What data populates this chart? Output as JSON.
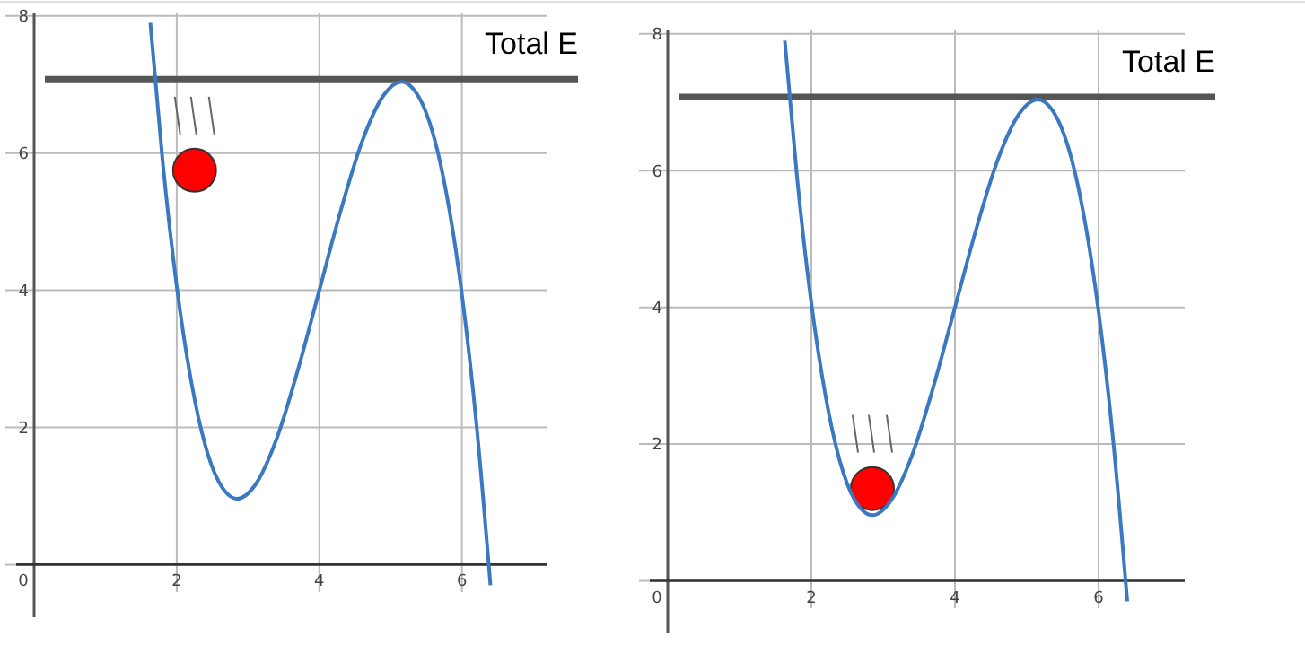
{
  "chart_data": [
    {
      "type": "line",
      "x": [
        1.63,
        1.8,
        2.0,
        2.2,
        2.4,
        2.6,
        2.85,
        3.1,
        3.4,
        3.7,
        4.0,
        4.3,
        4.6,
        4.9,
        5.15,
        5.4,
        5.7,
        6.0,
        6.2,
        6.4
      ],
      "series": [
        {
          "color": "#3a78c2",
          "values": [
            7.9,
            5.91,
            4.06,
            2.69,
            1.74,
            1.19,
            0.96,
            1.16,
            1.83,
            2.84,
            4,
            5.16,
            6.17,
            6.84,
            7.04,
            6.81,
            5.84,
            3.94,
            2.09,
            -0.3
          ]
        }
      ],
      "xlim": [
        0,
        7.2
      ],
      "ylim": [
        -0.4,
        8.05
      ],
      "xticks": [
        0,
        2,
        4,
        6
      ],
      "yticks": [
        {
          "value": 0,
          "label": null
        },
        2,
        4,
        6,
        8
      ],
      "grid": true,
      "marker": "none",
      "line_style": "solid",
      "ref_lines": [
        {
          "axis": "y",
          "value": 7.08,
          "label": "Total E",
          "color": "#555555"
        }
      ]
    },
    {
      "type": "line",
      "x": [
        1.63,
        1.8,
        2.0,
        2.2,
        2.4,
        2.6,
        2.85,
        3.1,
        3.4,
        3.7,
        4.0,
        4.3,
        4.6,
        4.9,
        5.15,
        5.4,
        5.7,
        6.0,
        6.2,
        6.4
      ],
      "series": [
        {
          "color": "#3a78c2",
          "values": [
            7.9,
            5.91,
            4.06,
            2.69,
            1.74,
            1.19,
            0.96,
            1.16,
            1.83,
            2.84,
            4,
            5.16,
            6.17,
            6.84,
            7.04,
            6.81,
            5.84,
            3.94,
            2.09,
            -0.3
          ]
        }
      ],
      "xlim": [
        0,
        7.2
      ],
      "ylim": [
        -0.4,
        8.05
      ],
      "xticks": [
        0,
        2,
        4,
        6
      ],
      "yticks": [
        {
          "value": 0,
          "label": null
        },
        2,
        4,
        6,
        8
      ],
      "grid": true,
      "marker": "none",
      "line_style": "solid",
      "ref_lines": [
        {
          "axis": "y",
          "value": 7.08,
          "label": "Total E",
          "color": "#555555"
        }
      ]
    }
  ]
}
